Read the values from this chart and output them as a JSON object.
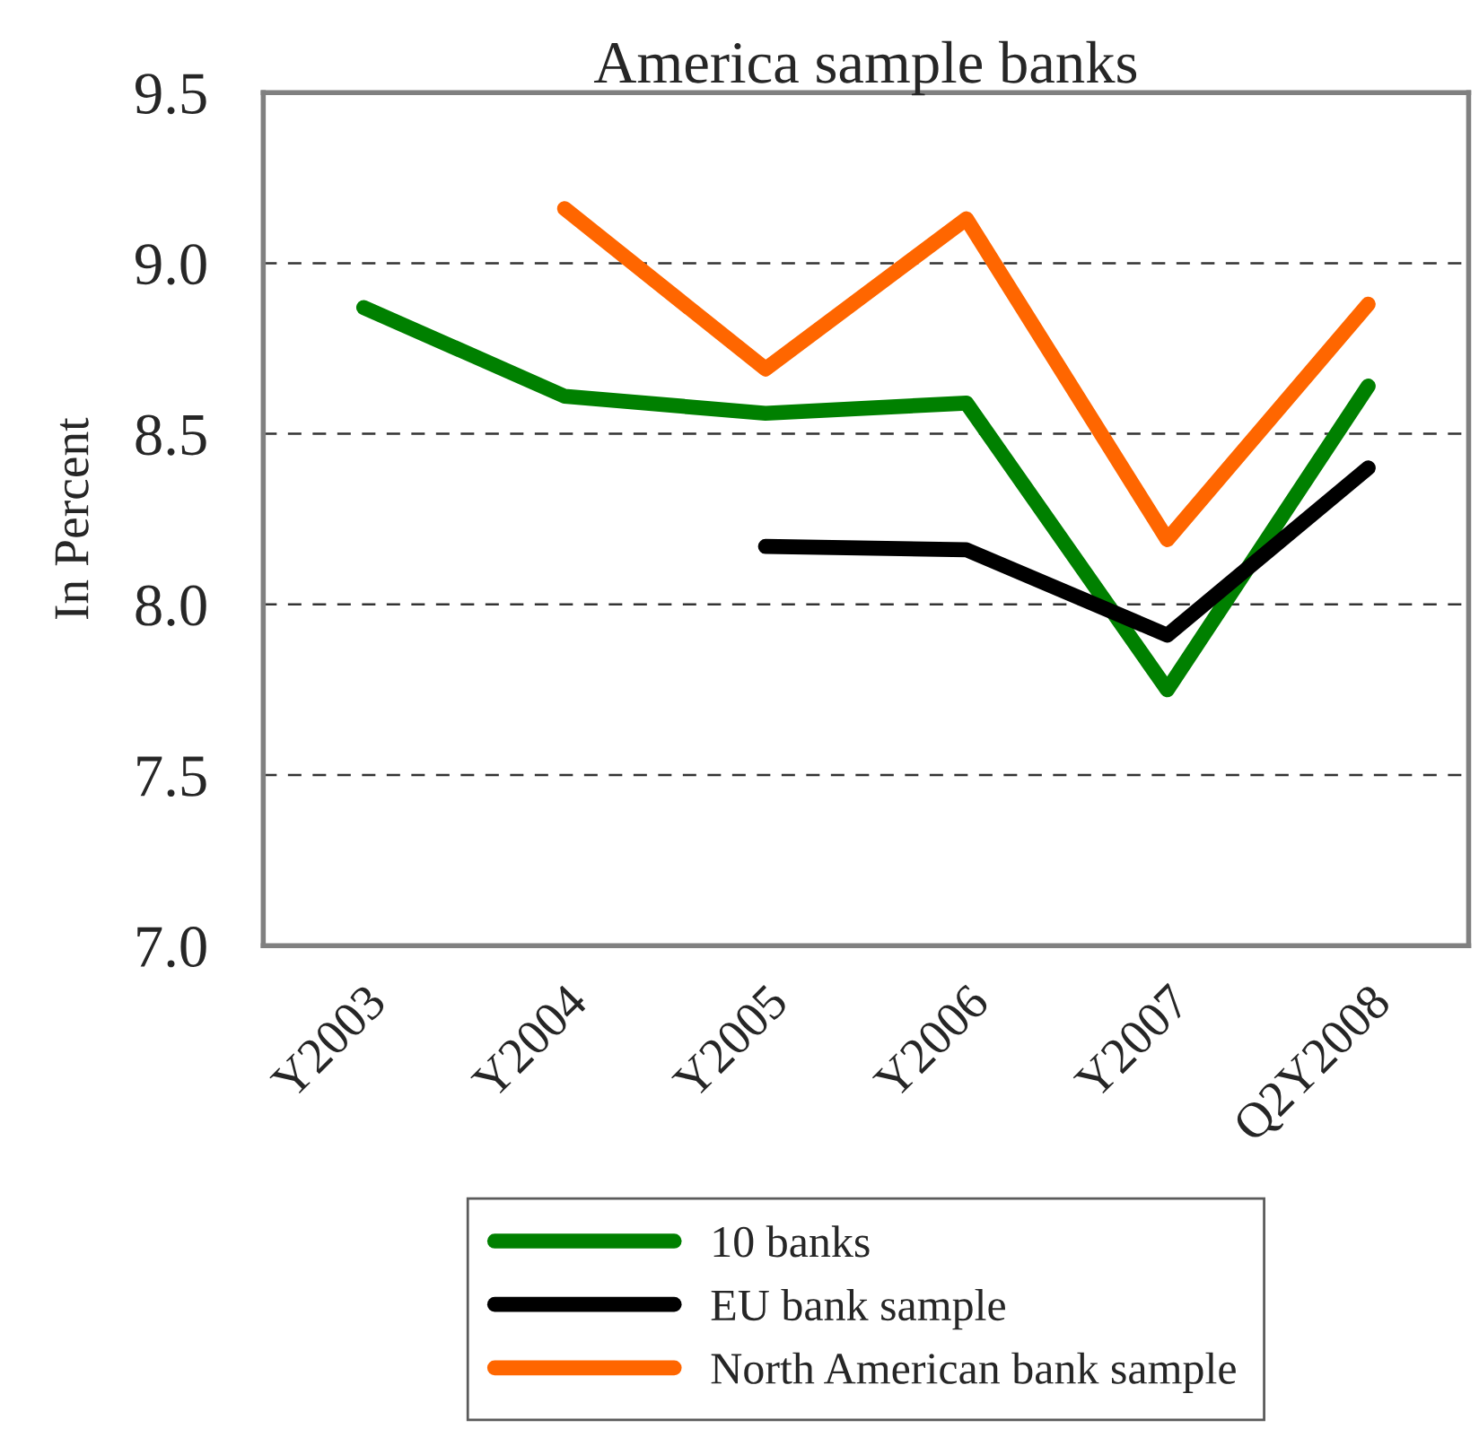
{
  "chart_data": {
    "type": "line",
    "title": "America sample banks",
    "ylabel": "In Percent",
    "categories": [
      "Y2003",
      "Y2004",
      "Y2005",
      "Y2006",
      "Y2007",
      "Q2Y2008"
    ],
    "series": [
      {
        "name": "10 banks",
        "color": "#008000",
        "values": [
          8.87,
          8.61,
          8.56,
          8.59,
          7.75,
          8.64
        ]
      },
      {
        "name": "EU bank sample",
        "color": "#000000",
        "values": [
          null,
          null,
          8.17,
          8.16,
          7.91,
          8.4
        ]
      },
      {
        "name": "North American bank sample",
        "color": "#ff6600",
        "values": [
          null,
          9.16,
          8.69,
          9.13,
          8.19,
          8.88
        ]
      }
    ],
    "ylim": [
      7.0,
      9.5
    ],
    "yticks": [
      {
        "value": 7.0,
        "label": "7.0"
      },
      {
        "value": 7.5,
        "label": "7.5"
      },
      {
        "value": 8.0,
        "label": "8.0"
      },
      {
        "value": 8.5,
        "label": "8.5"
      },
      {
        "value": 9.0,
        "label": "9.0"
      },
      {
        "value": 9.5,
        "label": "9.5"
      }
    ],
    "grid": "y",
    "legend": "bottom",
    "marker": "none",
    "line_style": "solid"
  }
}
